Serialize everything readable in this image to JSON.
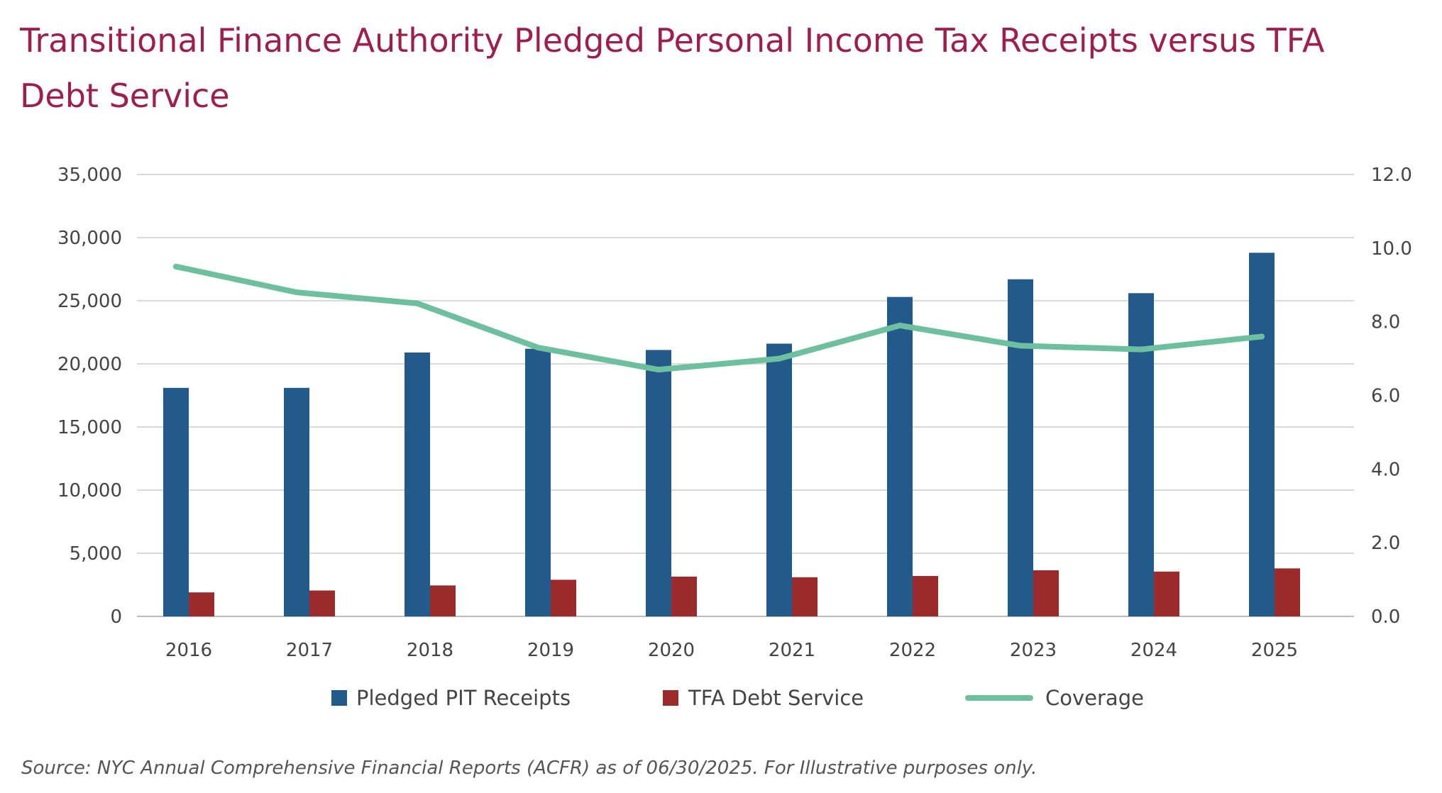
{
  "title": "Transitional Finance Authority Pledged Personal Income Tax Receipts versus TFA Debt Service",
  "source": "Source: NYC Annual Comprehensive Financial Reports (ACFR) as of 06/30/2025. For Illustrative purposes only.",
  "chart_data": {
    "type": "bar",
    "title": "Transitional Finance Authority Pledged Personal Income Tax Receipts versus TFA Debt Service",
    "xlabel": "",
    "ylabel": "",
    "categories": [
      "2016",
      "2017",
      "2018",
      "2019",
      "2020",
      "2021",
      "2022",
      "2023",
      "2024",
      "2025"
    ],
    "series": [
      {
        "name": "Pledged PIT Receipts",
        "type": "bar",
        "axis": "left",
        "color": "#235a8c",
        "values": [
          18100,
          18100,
          20900,
          21200,
          21100,
          21600,
          25300,
          26700,
          25600,
          28800
        ]
      },
      {
        "name": "TFA Debt Service",
        "type": "bar",
        "axis": "left",
        "color": "#9b2a2a",
        "values": [
          1900,
          2050,
          2450,
          2900,
          3150,
          3100,
          3200,
          3650,
          3550,
          3800
        ]
      },
      {
        "name": "Coverage",
        "type": "line",
        "axis": "right",
        "color": "#6cc09e",
        "values": [
          9.5,
          8.8,
          8.5,
          7.3,
          6.7,
          7.0,
          7.9,
          7.35,
          7.25,
          7.6
        ]
      }
    ],
    "ylim": [
      0,
      35000
    ],
    "y2lim": [
      0,
      12.0
    ],
    "y_ticks": [
      0,
      5000,
      10000,
      15000,
      20000,
      25000,
      30000,
      35000
    ],
    "y_tick_labels": [
      "0",
      "5,000",
      "10,000",
      "15,000",
      "20,000",
      "25,000",
      "30,000",
      "35,000"
    ],
    "y2_ticks": [
      0,
      2,
      4,
      6,
      8,
      10,
      12
    ],
    "y2_tick_labels": [
      "0.0",
      "2.0",
      "4.0",
      "6.0",
      "8.0",
      "10.0",
      "12.0"
    ],
    "grid": true,
    "legend_position": "bottom"
  }
}
